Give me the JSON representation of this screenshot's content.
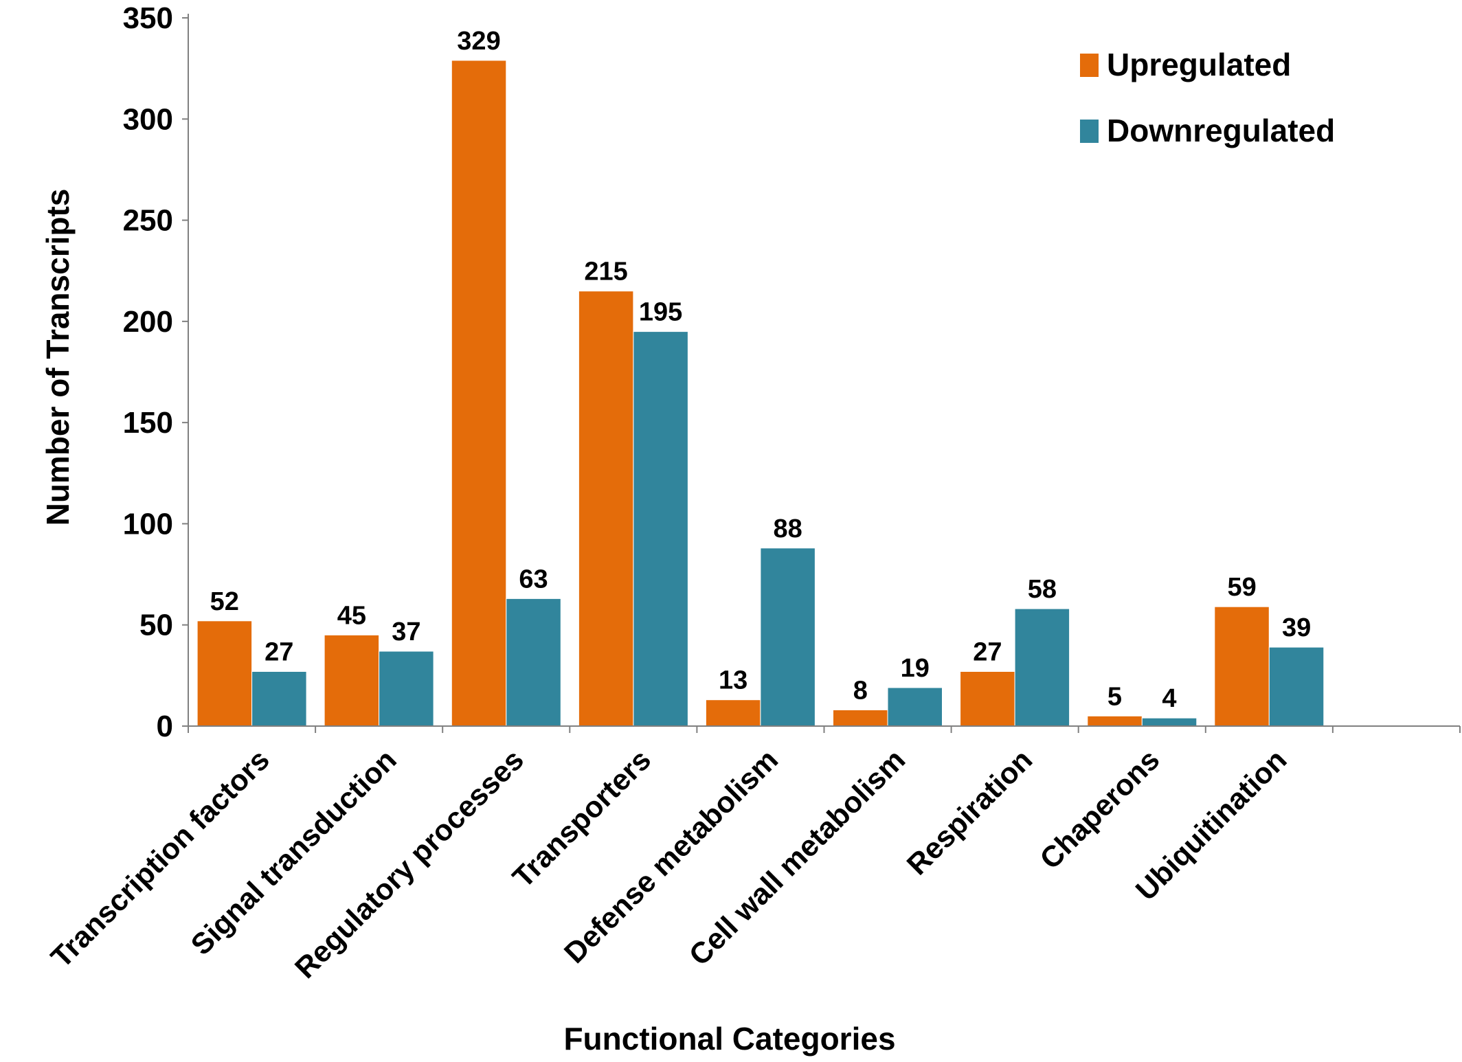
{
  "chart_data": {
    "type": "bar",
    "title": "",
    "xlabel": "Functional Categories",
    "ylabel": "Number of Transcripts",
    "ylim": [
      0,
      350
    ],
    "yticks": [
      0,
      50,
      100,
      150,
      200,
      250,
      300,
      350
    ],
    "grid": false,
    "legend_position": "top-right",
    "categories": [
      "Transcription factors",
      "Signal transduction",
      "Regulatory processes",
      "Transporters",
      "Defense metabolism",
      "Cell wall metabolism",
      "Respiration",
      "Chaperons",
      "Ubiquitination"
    ],
    "series": [
      {
        "name": "Upregulated",
        "color": "#E46C0A",
        "values": [
          52,
          45,
          329,
          215,
          13,
          8,
          27,
          5,
          59
        ]
      },
      {
        "name": "Downregulated",
        "color": "#31859C",
        "values": [
          27,
          37,
          63,
          195,
          88,
          19,
          58,
          4,
          39
        ]
      }
    ]
  }
}
